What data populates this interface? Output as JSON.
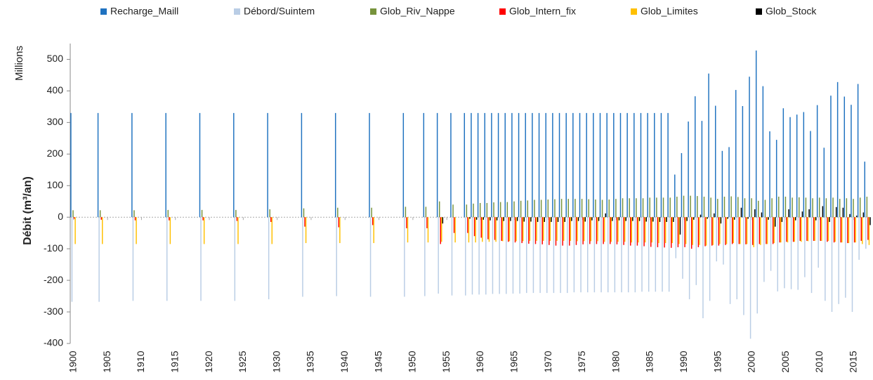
{
  "chart_data": {
    "type": "bar",
    "y_unit_label": "Millions",
    "y_label": "Débit (m³/an)",
    "x": [
      1900,
      1904,
      1909,
      1914,
      1919,
      1924,
      1929,
      1934,
      1939,
      1944,
      1949,
      1952,
      1954,
      1956,
      1958,
      1959,
      1960,
      1961,
      1962,
      1963,
      1964,
      1965,
      1966,
      1967,
      1968,
      1969,
      1970,
      1971,
      1972,
      1973,
      1974,
      1975,
      1976,
      1977,
      1978,
      1979,
      1980,
      1981,
      1982,
      1983,
      1984,
      1985,
      1986,
      1987,
      1988,
      1989,
      1990,
      1991,
      1992,
      1993,
      1994,
      1995,
      1996,
      1997,
      1998,
      1999,
      2000,
      2001,
      2002,
      2003,
      2004,
      2005,
      2006,
      2007,
      2008,
      2009,
      2010,
      2011,
      2012,
      2013,
      2014,
      2015,
      2016,
      2017
    ],
    "series": [
      {
        "name": "Recharge_Maill",
        "color": "#1f72c0",
        "values": [
          330,
          330,
          330,
          330,
          330,
          330,
          330,
          330,
          330,
          330,
          330,
          330,
          330,
          330,
          330,
          330,
          330,
          330,
          330,
          330,
          330,
          330,
          330,
          330,
          330,
          330,
          330,
          330,
          330,
          330,
          330,
          330,
          330,
          330,
          330,
          330,
          330,
          330,
          330,
          330,
          330,
          330,
          330,
          330,
          330,
          135,
          203,
          303,
          383,
          305,
          455,
          353,
          210,
          222,
          403,
          352,
          445,
          528,
          415,
          272,
          245,
          345,
          317,
          325,
          333,
          273,
          355,
          220,
          385,
          428,
          382,
          356,
          422,
          176
        ]
      },
      {
        "name": "Débord/Suintem",
        "color": "#b9cde5",
        "values": [
          -268,
          -268,
          -265,
          -265,
          -265,
          -265,
          -260,
          -252,
          -250,
          -252,
          -252,
          -250,
          -242,
          -248,
          -248,
          -245,
          -245,
          -245,
          -243,
          -243,
          -243,
          -242,
          -242,
          -240,
          -240,
          -240,
          -240,
          -240,
          -240,
          -240,
          -238,
          -238,
          -238,
          -238,
          -238,
          -238,
          -238,
          -238,
          -238,
          -238,
          -236,
          -236,
          -236,
          -236,
          -236,
          -130,
          -195,
          -260,
          -215,
          -320,
          -265,
          -140,
          -150,
          -275,
          -260,
          -310,
          -385,
          -305,
          -205,
          -170,
          -235,
          -225,
          -228,
          -230,
          -190,
          -240,
          -160,
          -265,
          -300,
          -275,
          -255,
          -300,
          -135,
          -100
        ]
      },
      {
        "name": "Glob_Riv_Nappe",
        "color": "#77933c",
        "values": [
          22,
          22,
          22,
          23,
          23,
          23,
          25,
          28,
          30,
          30,
          33,
          33,
          50,
          40,
          40,
          43,
          45,
          45,
          47,
          48,
          48,
          50,
          52,
          53,
          55,
          55,
          56,
          57,
          58,
          58,
          58,
          58,
          57,
          56,
          55,
          56,
          58,
          60,
          60,
          60,
          60,
          62,
          62,
          62,
          62,
          65,
          68,
          68,
          67,
          65,
          62,
          58,
          65,
          66,
          64,
          60,
          60,
          52,
          55,
          60,
          65,
          65,
          62,
          63,
          62,
          60,
          62,
          60,
          62,
          58,
          60,
          58,
          62,
          65
        ]
      },
      {
        "name": "Glob_Intern_fix",
        "color": "#ff0000",
        "values": [
          -5,
          -8,
          -10,
          -10,
          -10,
          -12,
          -15,
          -30,
          -32,
          -25,
          -35,
          -35,
          -85,
          -50,
          -50,
          -60,
          -65,
          -70,
          -72,
          -75,
          -78,
          -80,
          -82,
          -84,
          -85,
          -86,
          -88,
          -90,
          -90,
          -90,
          -88,
          -86,
          -85,
          -85,
          -85,
          -85,
          -86,
          -88,
          -90,
          -90,
          -92,
          -94,
          -95,
          -96,
          -97,
          -95,
          -95,
          -100,
          -95,
          -92,
          -90,
          -90,
          -88,
          -85,
          -85,
          -86,
          -88,
          -85,
          -85,
          -85,
          -80,
          -78,
          -78,
          -75,
          -75,
          -75,
          -75,
          -78,
          -80,
          -80,
          -82,
          -80,
          -75,
          -72
        ]
      },
      {
        "name": "Glob_Limites",
        "color": "#ffc000",
        "values": [
          -85,
          -85,
          -85,
          -85,
          -85,
          -85,
          -85,
          -82,
          -82,
          -82,
          -80,
          -80,
          -78,
          -80,
          -80,
          -80,
          -78,
          -78,
          -78,
          -76,
          -76,
          -76,
          -76,
          -75,
          -75,
          -75,
          -75,
          -75,
          -75,
          -75,
          -76,
          -76,
          -76,
          -76,
          -78,
          -78,
          -78,
          -78,
          -80,
          -80,
          -80,
          -80,
          -82,
          -82,
          -82,
          -85,
          -85,
          -88,
          -88,
          -90,
          -88,
          -85,
          -85,
          -82,
          -85,
          -85,
          -95,
          -88,
          -85,
          -82,
          -80,
          -80,
          -78,
          -78,
          -76,
          -75,
          -75,
          -75,
          -78,
          -80,
          -82,
          -80,
          -85,
          -88
        ]
      },
      {
        "name": "Glob_Stock",
        "color": "#000000",
        "values": [
          0,
          0,
          0,
          0,
          0,
          0,
          0,
          0,
          0,
          0,
          0,
          0,
          -20,
          0,
          -5,
          -8,
          -8,
          -10,
          -10,
          -12,
          -12,
          -12,
          -14,
          -14,
          -15,
          -15,
          -15,
          -15,
          -15,
          -12,
          -12,
          -14,
          -10,
          -12,
          12,
          -12,
          -10,
          -12,
          -12,
          -12,
          -14,
          -14,
          -15,
          -15,
          -15,
          -55,
          -12,
          -8,
          8,
          -5,
          12,
          -20,
          -5,
          -8,
          30,
          -5,
          25,
          15,
          -8,
          -30,
          -15,
          25,
          -10,
          18,
          25,
          -10,
          35,
          -15,
          32,
          30,
          10,
          5,
          15,
          -25
        ]
      }
    ],
    "xlim": [
      1899.5,
      2017.5
    ],
    "xticks": [
      1900,
      1905,
      1910,
      1915,
      1920,
      1925,
      1930,
      1935,
      1940,
      1945,
      1950,
      1955,
      1960,
      1965,
      1970,
      1975,
      1980,
      1985,
      1990,
      1995,
      2000,
      2005,
      2010,
      2015
    ],
    "ylim": [
      -400,
      550
    ],
    "yticks": [
      -400,
      -300,
      -200,
      -100,
      0,
      100,
      200,
      300,
      400,
      500
    ],
    "legend": "top"
  }
}
